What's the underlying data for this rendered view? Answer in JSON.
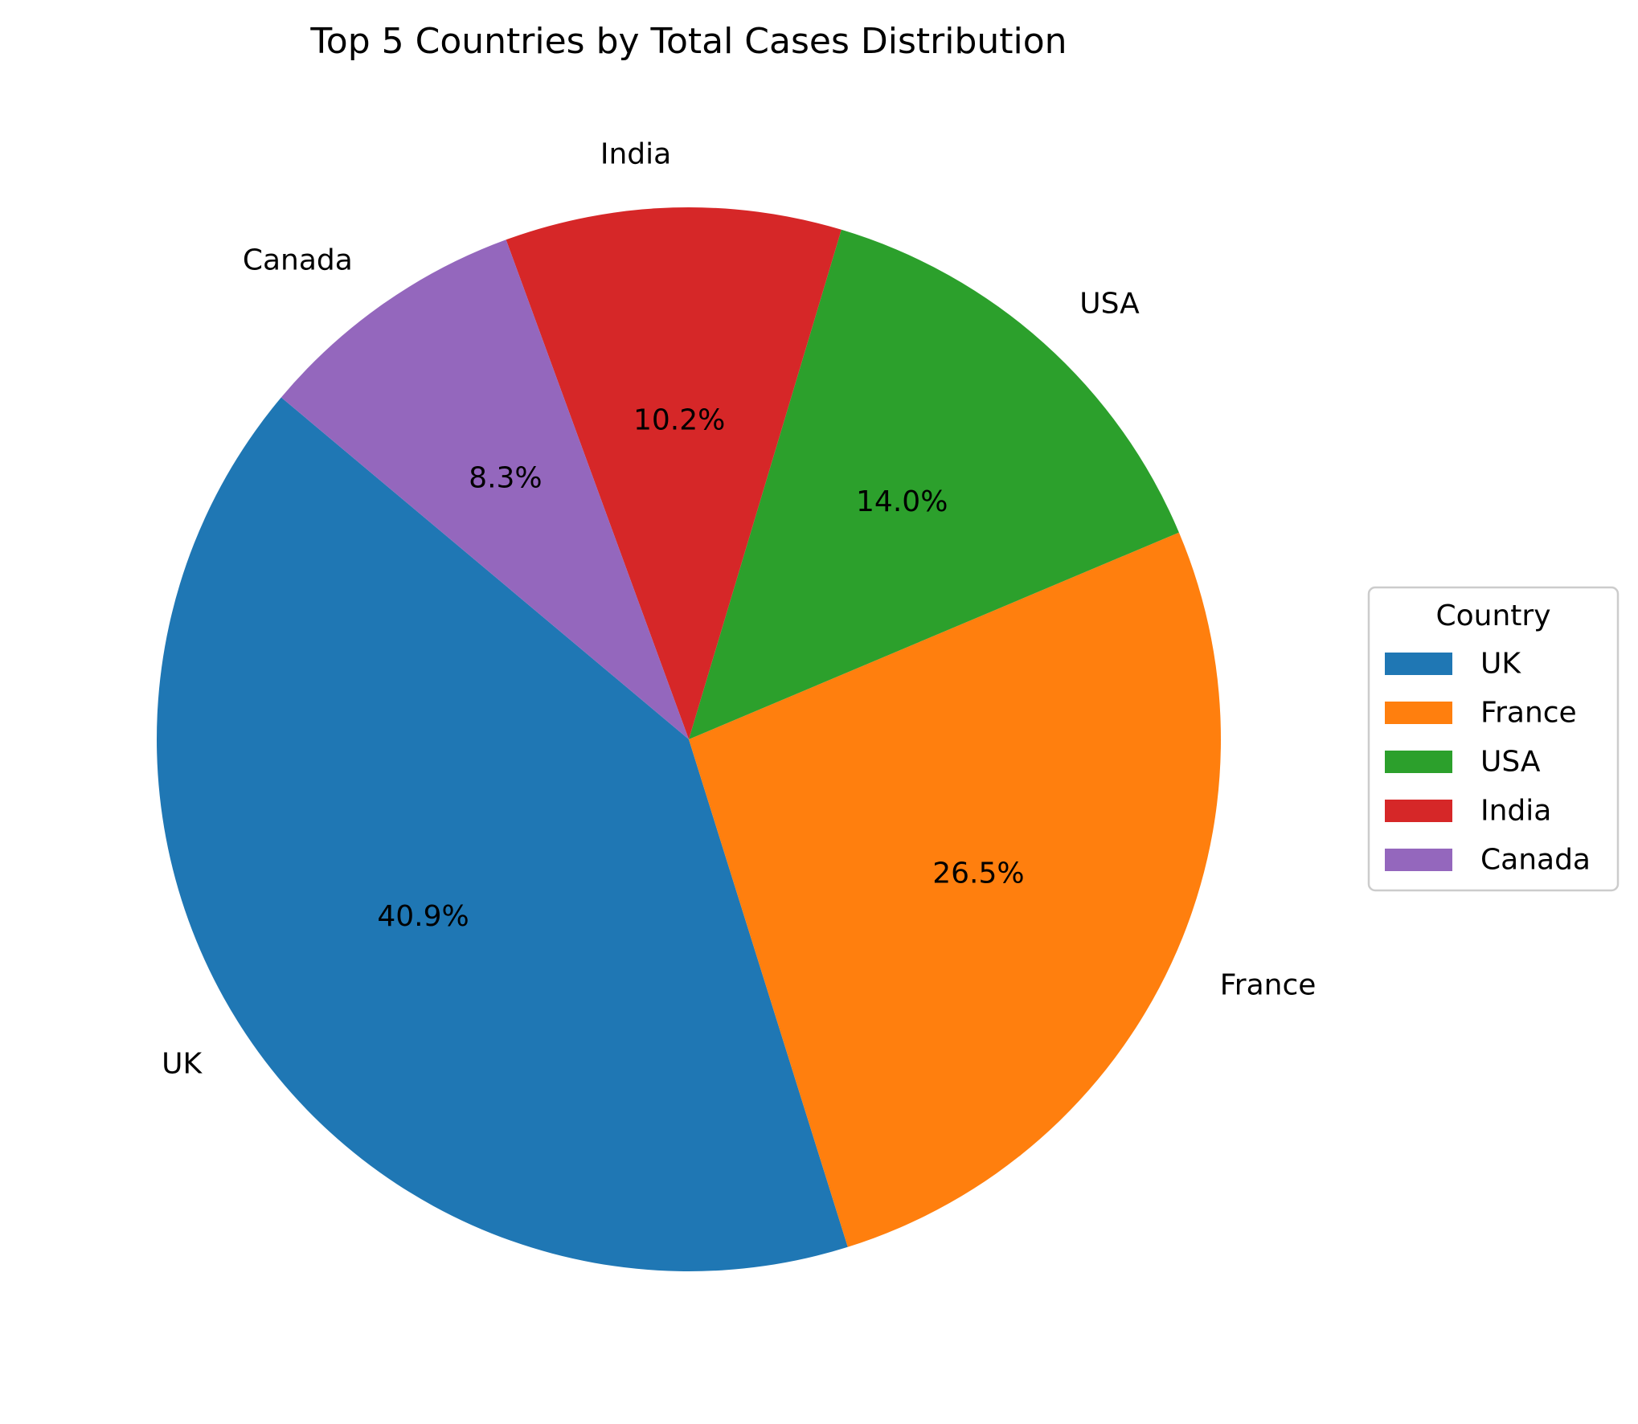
{
  "chart_data": {
    "type": "pie",
    "title": "Top 5 Countries by Total Cases Distribution",
    "slices": [
      {
        "label": "UK",
        "percent": 40.9,
        "percent_label": "40.9%",
        "color": "#1f77b4"
      },
      {
        "label": "France",
        "percent": 26.5,
        "percent_label": "26.5%",
        "color": "#ff7f0e"
      },
      {
        "label": "USA",
        "percent": 14.0,
        "percent_label": "14.0%",
        "color": "#2ca02c"
      },
      {
        "label": "India",
        "percent": 10.2,
        "percent_label": "10.2%",
        "color": "#d62728"
      },
      {
        "label": "Canada",
        "percent": 8.3,
        "percent_label": "8.3%",
        "color": "#9467bd"
      }
    ],
    "legend": {
      "title": "Country",
      "placement": "right",
      "entries": [
        "UK",
        "France",
        "USA",
        "India",
        "Canada"
      ]
    }
  }
}
